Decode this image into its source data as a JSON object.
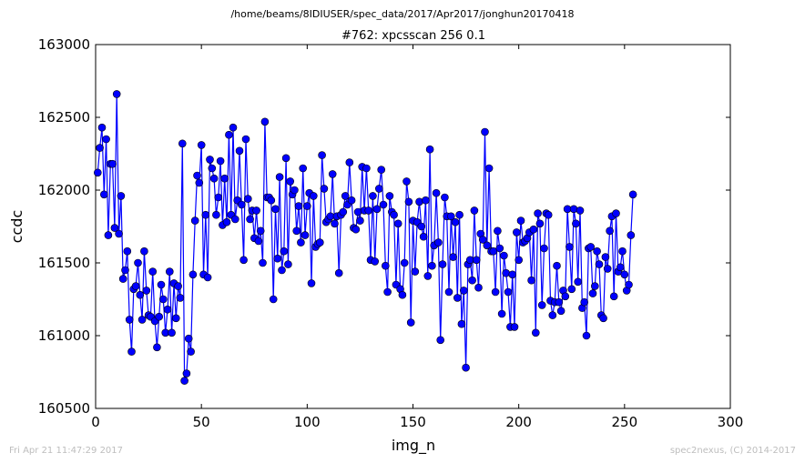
{
  "header": {
    "path": "/home/beams/8IDIUSER/spec_data/2017/Apr2017/jonghun20170418"
  },
  "footer": {
    "timestamp": "Fri Apr 21 11:47:29 2017",
    "credit": "spec2nexus, (C) 2014-2017"
  },
  "colors": {
    "series": "#0000ff",
    "axes": "#000000",
    "footer_text": "#bdbdbd"
  },
  "chart_data": {
    "type": "line",
    "title": "#762: xpcsscan 256 0.1",
    "xlabel": "img_n",
    "ylabel": "ccdc",
    "xlim": [
      0,
      300
    ],
    "ylim": [
      160500,
      163000
    ],
    "xticks": [
      "0",
      "50",
      "100",
      "150",
      "200",
      "250",
      "300"
    ],
    "yticks": [
      "160500",
      "161000",
      "161500",
      "162000",
      "162500",
      "163000"
    ],
    "grid": false,
    "marker": "circle",
    "series": [
      {
        "x_start": 1,
        "values": [
          162120,
          162290,
          162430,
          161970,
          162350,
          161690,
          162180,
          162180,
          161740,
          162660,
          161700,
          161960,
          161390,
          161450,
          161580,
          161110,
          160890,
          161320,
          161340,
          161500,
          161280,
          161110,
          161580,
          161310,
          161140,
          161130,
          161440,
          161100,
          160920,
          161130,
          161350,
          161250,
          161020,
          161180,
          161440,
          161020,
          161360,
          161120,
          161340,
          161260,
          162320,
          160690,
          160740,
          160980,
          160890,
          161420,
          161790,
          162100,
          162050,
          162310,
          161420,
          161830,
          161400,
          162210,
          162150,
          162080,
          161830,
          161950,
          162200,
          161760,
          162080,
          161780,
          162380,
          161830,
          162430,
          161800,
          161930,
          162270,
          161900,
          161520,
          162350,
          161940,
          161800,
          161860,
          161670,
          161860,
          161650,
          161720,
          161500,
          162470,
          161950,
          161950,
          161930,
          161250,
          161870,
          161530,
          162090,
          161450,
          161580,
          162220,
          161490,
          162060,
          161970,
          162000,
          161720,
          161890,
          161640,
          162150,
          161690,
          161890,
          161980,
          161360,
          161960,
          161610,
          161630,
          161640,
          162240,
          162010,
          161780,
          161800,
          161820,
          162110,
          161770,
          161820,
          161430,
          161830,
          161850,
          161960,
          161900,
          162190,
          161930,
          161740,
          161730,
          161850,
          161790,
          162160,
          161860,
          162150,
          161860,
          161520,
          161960,
          161510,
          161870,
          162010,
          162140,
          161900,
          161480,
          161300,
          161960,
          161850,
          161830,
          161350,
          161770,
          161320,
          161280,
          161500,
          162060,
          161920,
          161090,
          161790,
          161440,
          161780,
          161920,
          161750,
          161680,
          161930,
          161410,
          162280,
          161480,
          161620,
          161980,
          161640,
          160970,
          161490,
          161950,
          161820,
          161300,
          161820,
          161540,
          161780,
          161260,
          161830,
          161080,
          161310,
          160780,
          161490,
          161520,
          161380,
          161860,
          161520,
          161330,
          161700,
          161660,
          162400,
          161620,
          162150,
          161580,
          161580,
          161300,
          161720,
          161600,
          161150,
          161550,
          161430,
          161300,
          161060,
          161420,
          161060,
          161710,
          161520,
          161790,
          161640,
          161650,
          161670,
          161710,
          161380,
          161730,
          161020,
          161840,
          161770,
          161210,
          161600,
          161840,
          161830,
          161240,
          161140,
          161230,
          161480,
          161230,
          161170,
          161310,
          161270,
          161870,
          161610,
          161320,
          161870,
          161770,
          161370,
          161860,
          161190,
          161230,
          161000,
          161600,
          161610,
          161290,
          161340,
          161580,
          161490,
          161140,
          161120,
          161540,
          161460,
          161720,
          161820,
          161270,
          161840,
          161440,
          161470,
          161580,
          161420,
          161310,
          161350,
          161690,
          161970
        ]
      }
    ]
  }
}
